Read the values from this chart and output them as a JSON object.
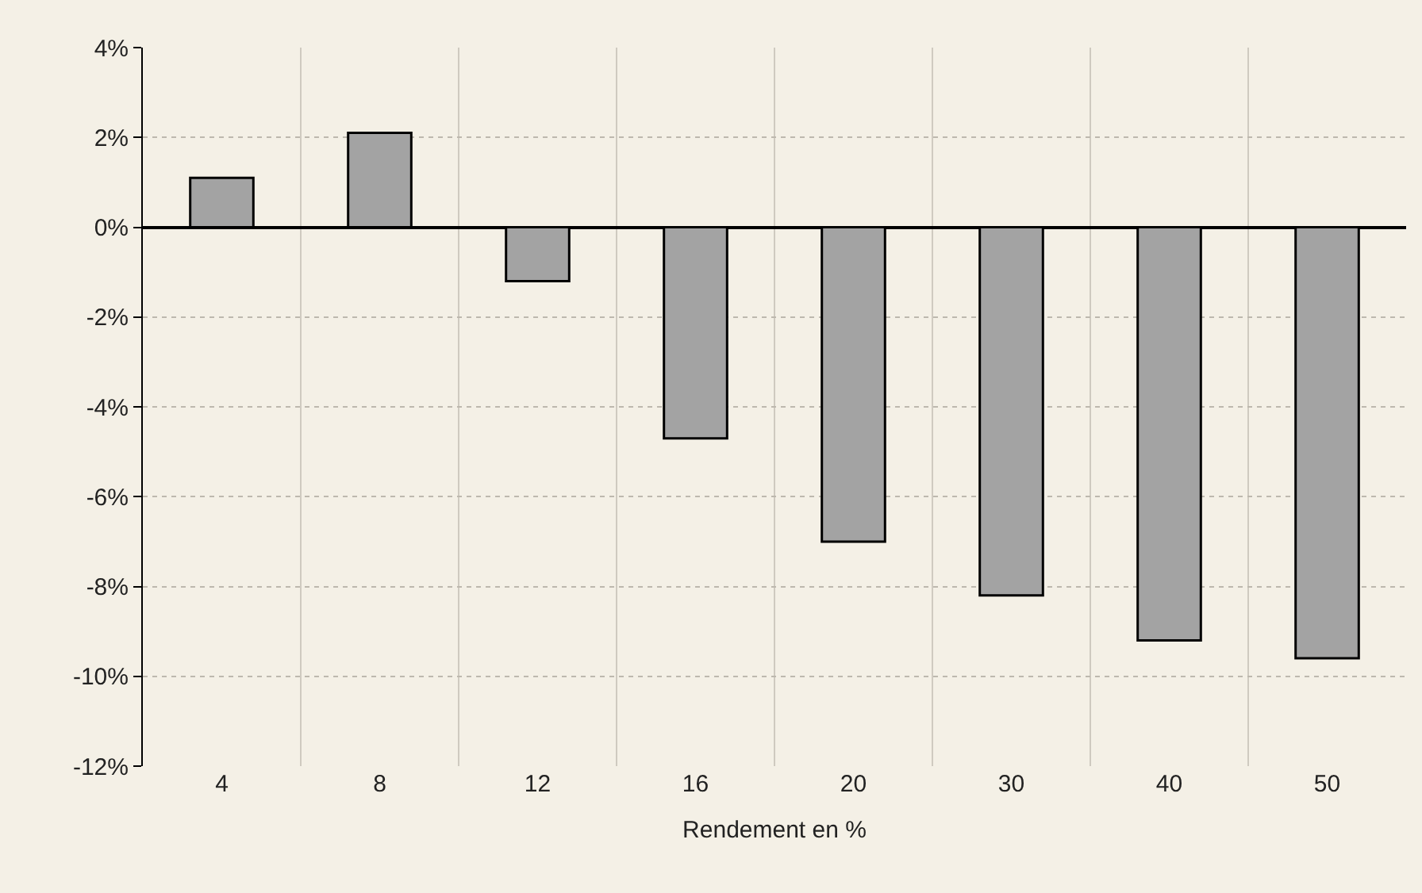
{
  "chart_data": {
    "type": "bar",
    "xlabel": "Rendement en %",
    "categories": [
      "4",
      "8",
      "12",
      "16",
      "20",
      "30",
      "40",
      "50"
    ],
    "values": [
      1.1,
      2.1,
      -1.2,
      -4.7,
      -7.0,
      -8.2,
      -9.2,
      -9.6
    ],
    "color": "#a3a3a3",
    "ylim": [
      -12,
      4
    ],
    "yticks": [
      {
        "value": 4,
        "label": "4%"
      },
      {
        "value": 2,
        "label": "2%"
      },
      {
        "value": 0,
        "label": "0%"
      },
      {
        "value": -2,
        "label": "-2%"
      },
      {
        "value": -4,
        "label": "-4%"
      },
      {
        "value": -6,
        "label": "-6%"
      },
      {
        "value": -8,
        "label": "-8%"
      },
      {
        "value": -10,
        "label": "-10%"
      },
      {
        "value": -12,
        "label": "-12%"
      }
    ],
    "grid": true
  }
}
